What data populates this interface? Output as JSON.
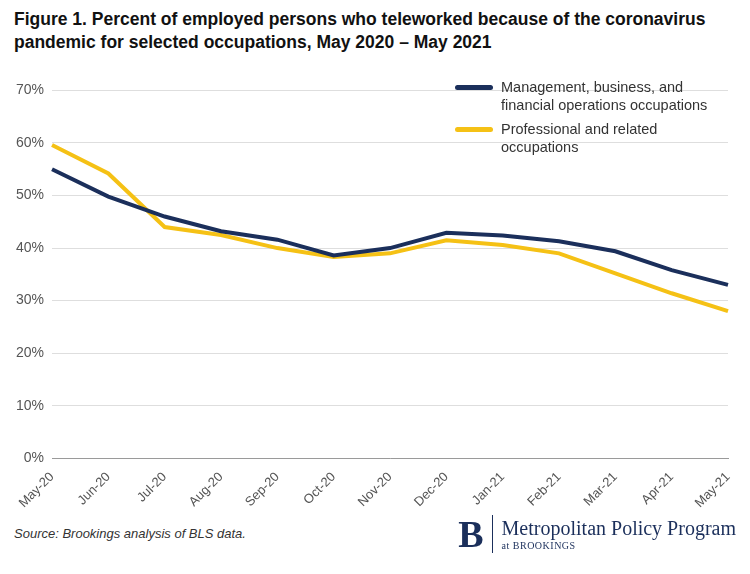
{
  "chart_data": {
    "type": "line",
    "title": "Figure 1. Percent of employed persons who teleworked because of the coronavirus pandemic for selected occupations, May 2020 – May 2021",
    "categories": [
      "May-20",
      "Jun-20",
      "Jul-20",
      "Aug-20",
      "Sep-20",
      "Oct-20",
      "Nov-20",
      "Dec-20",
      "Jan-21",
      "Feb-21",
      "Mar-21",
      "Apr-21",
      "May-21"
    ],
    "series": [
      {
        "name": "Management, business, and financial operations occupations",
        "color": "#1b2f5b",
        "values": [
          55,
          49.8,
          46,
          43.2,
          41.6,
          38.6,
          40,
          42.9,
          42.4,
          41.3,
          39.4,
          35.8,
          33
        ]
      },
      {
        "name": "Professional and related occupations",
        "color": "#f5c115",
        "values": [
          59.6,
          54.2,
          44,
          42.5,
          40,
          38.3,
          39,
          41.5,
          40.6,
          39,
          35.2,
          31.4,
          28
        ]
      }
    ],
    "ylim": [
      0,
      70
    ],
    "yticks": [
      {
        "value": 0,
        "label": "0%"
      },
      {
        "value": 10,
        "label": "10%"
      },
      {
        "value": 20,
        "label": "20%"
      },
      {
        "value": 30,
        "label": "30%"
      },
      {
        "value": 40,
        "label": "40%"
      },
      {
        "value": 50,
        "label": "50%"
      },
      {
        "value": 60,
        "label": "60%"
      },
      {
        "value": 70,
        "label": "70%"
      }
    ],
    "grid": true,
    "legend": "top right",
    "annotations": [
      "Source: Brookings analysis of BLS data.",
      "B",
      "Metropolitan Policy Program",
      "at BROOKINGS"
    ]
  }
}
